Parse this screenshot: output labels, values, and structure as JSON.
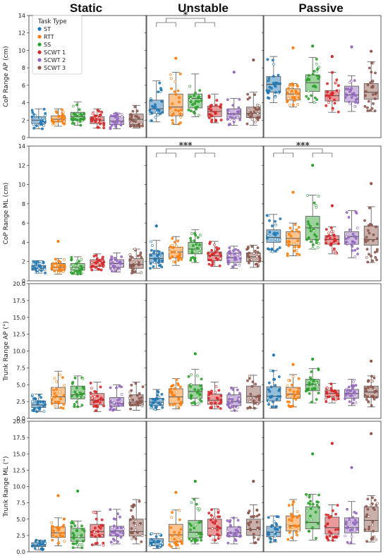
{
  "columns": [
    "Static",
    "Unstable",
    "Passive"
  ],
  "legend": {
    "title": "Task Type",
    "entries": [
      "ST",
      "RTT",
      "SS",
      "SCWT 1",
      "SCWT 2",
      "SCWT 3"
    ]
  },
  "colors": {
    "ST": "#1f77b4",
    "RTT": "#ff7f0e",
    "SS": "#2ca02c",
    "SCWT 1": "#d62728",
    "SCWT 2": "#9467bd",
    "SCWT 3": "#8c564b"
  },
  "chart_data": [
    {
      "type": "box",
      "ylabel": "CoP Range AP (cm)",
      "ylim": [
        0,
        14
      ],
      "yticks": [
        "0",
        "2",
        "4",
        "6",
        "8",
        "10",
        "12",
        "14"
      ],
      "categories": [
        "ST",
        "RTT",
        "SS",
        "SCWT 1",
        "SCWT 2",
        "SCWT 3"
      ],
      "panels": [
        {
          "condition": "Static",
          "boxes": [
            [
              1.0,
              1.6,
              2.0,
              2.4,
              3.3
            ],
            [
              1.3,
              1.8,
              2.1,
              2.5,
              3.3
            ],
            [
              1.4,
              2.0,
              2.4,
              2.9,
              4.1
            ],
            [
              1.1,
              1.6,
              2.0,
              2.4,
              3.3
            ],
            [
              1.0,
              1.5,
              1.9,
              2.4,
              2.8
            ],
            [
              1.1,
              1.5,
              2.1,
              2.7,
              3.7
            ]
          ],
          "significance": []
        },
        {
          "condition": "Unstable",
          "boxes": [
            [
              1.8,
              2.8,
              3.3,
              4.3,
              6.5
            ],
            [
              1.5,
              2.5,
              3.5,
              5.0,
              7.5
            ],
            [
              2.4,
              3.4,
              4.5,
              5.0,
              7.3
            ],
            [
              1.7,
              2.4,
              3.0,
              3.6,
              5.0
            ],
            [
              1.4,
              2.2,
              2.7,
              3.3,
              4.5
            ],
            [
              1.4,
              2.3,
              2.8,
              3.5,
              5.2
            ]
          ],
          "significance": [
            {
              "label": "*",
              "from": [
                0,
                1
              ],
              "to": [
                2,
                3
              ]
            }
          ]
        },
        {
          "condition": "Passive",
          "boxes": [
            [
              4.0,
              5.2,
              6.1,
              7.0,
              9.3
            ],
            [
              3.5,
              4.3,
              5.0,
              5.6,
              6.2
            ],
            [
              4.0,
              5.3,
              6.3,
              7.2,
              9.2
            ],
            [
              2.9,
              4.2,
              4.8,
              5.4,
              7.5
            ],
            [
              3.0,
              4.1,
              4.9,
              5.9,
              7.1
            ],
            [
              3.0,
              4.4,
              5.2,
              6.2,
              8.7
            ]
          ],
          "significance": []
        }
      ],
      "outliers": [
        {
          "condition": "Unstable",
          "category": "RTT",
          "value": 9.1
        },
        {
          "condition": "Unstable",
          "category": "SCWT 2",
          "value": 7.5
        },
        {
          "condition": "Unstable",
          "category": "SCWT 3",
          "value": 8.9
        },
        {
          "condition": "Passive",
          "category": "RTT",
          "value": 10.3
        },
        {
          "condition": "Passive",
          "category": "SS",
          "value": 10.5
        },
        {
          "condition": "Passive",
          "category": "SCWT 1",
          "value": 9.3
        },
        {
          "condition": "Passive",
          "category": "SCWT 2",
          "value": 10.4
        },
        {
          "condition": "Passive",
          "category": "SCWT 3",
          "value": 9.9
        }
      ]
    },
    {
      "type": "box",
      "ylabel": "CoP Range ML (cm)",
      "ylim": [
        0,
        14
      ],
      "yticks": [
        "0",
        "2",
        "4",
        "6",
        "8",
        "10",
        "12",
        "14"
      ],
      "categories": [
        "ST",
        "RTT",
        "SS",
        "SCWT 1",
        "SCWT 2",
        "SCWT 3"
      ],
      "panels": [
        {
          "condition": "Static",
          "boxes": [
            [
              0.8,
              1.1,
              1.3,
              1.6,
              2.1
            ],
            [
              0.7,
              1.1,
              1.4,
              1.8,
              2.3
            ],
            [
              0.7,
              1.1,
              1.4,
              1.8,
              2.5
            ],
            [
              1.1,
              1.5,
              1.9,
              2.2,
              2.8
            ],
            [
              0.9,
              1.4,
              1.8,
              2.2,
              2.9
            ],
            [
              0.8,
              1.3,
              1.7,
              2.3,
              3.3
            ]
          ],
          "significance": []
        },
        {
          "condition": "Unstable",
          "boxes": [
            [
              1.3,
              1.9,
              2.3,
              2.8,
              4.2
            ],
            [
              1.6,
              2.4,
              3.0,
              3.5,
              4.6
            ],
            [
              1.9,
              2.8,
              3.3,
              4.0,
              5.3
            ],
            [
              1.5,
              2.1,
              2.6,
              3.0,
              4.1
            ],
            [
              1.3,
              1.9,
              2.4,
              2.9,
              3.6
            ],
            [
              1.4,
              2.0,
              2.5,
              2.9,
              3.7
            ]
          ],
          "significance": [
            {
              "label": "***",
              "from": [
                0,
                1
              ],
              "to": [
                2,
                3
              ]
            }
          ]
        },
        {
          "condition": "Passive",
          "boxes": [
            [
              3.0,
              4.0,
              4.5,
              5.3,
              6.9
            ],
            [
              2.6,
              3.7,
              4.4,
              5.1,
              6.0
            ],
            [
              3.3,
              4.3,
              5.5,
              6.7,
              8.9
            ],
            [
              2.8,
              3.8,
              4.3,
              4.7,
              5.6
            ],
            [
              2.4,
              3.8,
              4.6,
              5.1,
              7.3
            ],
            [
              1.9,
              3.7,
              4.3,
              5.7,
              7.7
            ]
          ],
          "significance": [
            {
              "label": "***",
              "from": [
                0,
                1
              ],
              "to": [
                2,
                3
              ]
            }
          ]
        }
      ],
      "outliers": [
        {
          "condition": "Static",
          "category": "RTT",
          "value": 4.1
        },
        {
          "condition": "Unstable",
          "category": "ST",
          "value": 5.7
        },
        {
          "condition": "Passive",
          "category": "RTT",
          "value": 9.2
        },
        {
          "condition": "Passive",
          "category": "SS",
          "value": 12.0
        },
        {
          "condition": "Passive",
          "category": "SCWT 1",
          "value": 7.8
        },
        {
          "condition": "Passive",
          "category": "SCWT 3",
          "value": 10.1
        }
      ]
    },
    {
      "type": "box",
      "ylabel": "Trunk Range AP (°)",
      "ylim": [
        0,
        20
      ],
      "yticks": [
        "0.0",
        "2.5",
        "5.0",
        "7.5",
        "10.0",
        "12.5",
        "15.0",
        "17.5",
        "20.0"
      ],
      "categories": [
        "ST",
        "RTT",
        "SS",
        "SCWT 1",
        "SCWT 2",
        "SCWT 3"
      ],
      "panels": [
        {
          "condition": "Static",
          "boxes": [
            [
              1.0,
              1.6,
              2.0,
              2.6,
              3.6
            ],
            [
              1.5,
              2.2,
              3.2,
              4.6,
              7.0
            ],
            [
              1.7,
              2.9,
              3.5,
              4.8,
              6.3
            ],
            [
              1.0,
              2.0,
              2.7,
              3.7,
              5.4
            ],
            [
              1.2,
              1.8,
              2.3,
              3.1,
              5.0
            ],
            [
              1.2,
              1.9,
              2.4,
              3.5,
              5.4
            ]
          ],
          "significance": []
        },
        {
          "condition": "Unstable",
          "boxes": [
            [
              1.3,
              1.9,
              2.4,
              3.0,
              4.3
            ],
            [
              1.4,
              2.2,
              3.2,
              4.4,
              5.9
            ],
            [
              1.9,
              3.0,
              4.0,
              5.0,
              7.3
            ],
            [
              1.4,
              2.1,
              2.7,
              3.6,
              5.4
            ],
            [
              1.1,
              1.9,
              2.5,
              3.5,
              4.6
            ],
            [
              1.5,
              2.3,
              3.3,
              4.8,
              6.4
            ]
          ],
          "significance": []
        },
        {
          "condition": "Passive",
          "boxes": [
            [
              1.5,
              2.6,
              3.3,
              4.7,
              7.1
            ],
            [
              1.7,
              3.0,
              3.6,
              4.6,
              6.5
            ],
            [
              2.3,
              4.1,
              5.0,
              5.8,
              7.4
            ],
            [
              2.3,
              3.2,
              3.7,
              4.2,
              5.2
            ],
            [
              1.9,
              3.0,
              3.7,
              4.3,
              5.8
            ],
            [
              1.7,
              3.1,
              3.9,
              4.8,
              6.3
            ]
          ],
          "significance": []
        }
      ],
      "outliers": [
        {
          "condition": "Unstable",
          "category": "SS",
          "value": 9.6
        },
        {
          "condition": "Passive",
          "category": "ST",
          "value": 9.4
        },
        {
          "condition": "Passive",
          "category": "RTT",
          "value": 8.0
        },
        {
          "condition": "Passive",
          "category": "SS",
          "value": 8.8
        },
        {
          "condition": "Passive",
          "category": "SCWT 3",
          "value": 8.5
        }
      ]
    },
    {
      "type": "box",
      "ylabel": "Trunk Range ML (°)",
      "ylim": [
        0,
        20
      ],
      "yticks": [
        "0.0",
        "2.5",
        "5.0",
        "7.5",
        "10.0",
        "12.5",
        "15.0",
        "17.5",
        "20.0"
      ],
      "categories": [
        "ST",
        "RTT",
        "SS",
        "SCWT 1",
        "SCWT 2",
        "SCWT 3"
      ],
      "panels": [
        {
          "condition": "Static",
          "boxes": [
            [
              0.3,
              0.8,
              1.0,
              1.4,
              1.8
            ],
            [
              0.9,
              2.2,
              2.9,
              3.8,
              5.2
            ],
            [
              0.6,
              1.6,
              2.2,
              3.6,
              4.7
            ],
            [
              1.0,
              2.2,
              3.1,
              4.2,
              6.2
            ],
            [
              1.2,
              2.4,
              3.2,
              3.9,
              6.5
            ],
            [
              1.2,
              2.4,
              3.1,
              5.0,
              8.0
            ]
          ],
          "significance": []
        },
        {
          "condition": "Unstable",
          "boxes": [
            [
              0.5,
              0.9,
              1.4,
              2.0,
              2.8
            ],
            [
              0.5,
              1.5,
              2.6,
              4.2,
              6.4
            ],
            [
              1.2,
              2.1,
              3.0,
              4.8,
              8.2
            ],
            [
              1.3,
              2.5,
              3.6,
              5.0,
              6.6
            ],
            [
              1.2,
              2.3,
              2.9,
              3.8,
              5.2
            ],
            [
              1.3,
              2.5,
              3.4,
              5.0,
              7.2
            ]
          ],
          "significance": []
        },
        {
          "condition": "Passive",
          "boxes": [
            [
              1.5,
              2.3,
              3.0,
              3.9,
              5.5
            ],
            [
              1.7,
              3.2,
              4.0,
              5.5,
              8.0
            ],
            [
              1.8,
              3.5,
              4.5,
              6.9,
              8.8
            ],
            [
              1.7,
              2.7,
              3.7,
              5.3,
              7.2
            ],
            [
              1.2,
              2.9,
              3.7,
              5.2,
              7.7
            ],
            [
              1.5,
              3.1,
              4.8,
              6.9,
              8.6
            ]
          ],
          "significance": []
        }
      ],
      "outliers": [
        {
          "condition": "Static",
          "category": "RTT",
          "value": 8.6
        },
        {
          "condition": "Static",
          "category": "SS",
          "value": 9.3
        },
        {
          "condition": "Unstable",
          "category": "RTT",
          "value": 9.1
        },
        {
          "condition": "Unstable",
          "category": "SS",
          "value": 10.8
        },
        {
          "condition": "Unstable",
          "category": "SCWT 3",
          "value": 10.8
        },
        {
          "condition": "Passive",
          "category": "SS",
          "value": 15.0
        },
        {
          "condition": "Passive",
          "category": "SCWT 1",
          "value": 16.6
        },
        {
          "condition": "Passive",
          "category": "SCWT 2",
          "value": 12.9
        },
        {
          "condition": "Passive",
          "category": "SCWT 3",
          "value": 18.1
        }
      ]
    }
  ]
}
